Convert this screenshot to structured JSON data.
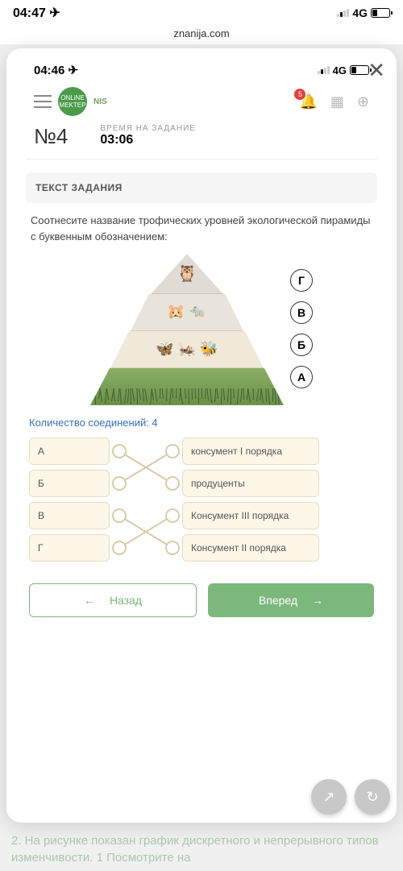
{
  "outer_status": {
    "time": "04:47 ✈",
    "network": "4G"
  },
  "url": "znanija.com",
  "inner_status": {
    "time": "04:46 ✈",
    "network": "4G"
  },
  "header": {
    "logo1": "ONLiNE MEKTEP",
    "logo2": "NIS",
    "badge": "5"
  },
  "question": {
    "num": "№4",
    "time_label": "ВРЕМЯ НА ЗАДАНИЕ",
    "time": "03:06",
    "section": "ТЕКСТ ЗАДАНИЯ",
    "text": "Соотнесите название трофических уровней экологической пирамиды с буквенным обозначением:"
  },
  "pyramid_labels": [
    "Г",
    "В",
    "Б",
    "А"
  ],
  "connections": "Количество соединений: 4",
  "left_items": [
    "А",
    "Б",
    "В",
    "Г"
  ],
  "right_items": [
    "консумент I порядка",
    "продуценты",
    "Консумент III порядка",
    "Консумент II порядка"
  ],
  "nav": {
    "back": "Назад",
    "next": "Вперед"
  },
  "bg_text": "2. На рисунке показан график дискретного и непрерывного типов изменчивости. 1 Посмотрите на"
}
